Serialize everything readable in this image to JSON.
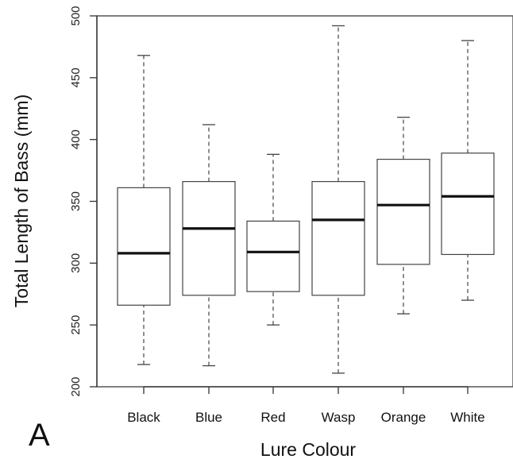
{
  "chart_data": {
    "type": "boxplot",
    "title": "",
    "panel_label": "A",
    "xlabel": "Lure Colour",
    "ylabel": "Total Length of Bass (mm)",
    "ylim": [
      200,
      500
    ],
    "yticks": [
      200,
      250,
      300,
      350,
      400,
      450,
      500
    ],
    "categories": [
      "Black",
      "Blue",
      "Red",
      "Wasp",
      "Orange",
      "White"
    ],
    "boxes": [
      {
        "label": "Black",
        "min": 218,
        "q1": 266,
        "median": 308,
        "q3": 361,
        "max": 468
      },
      {
        "label": "Blue",
        "min": 217,
        "q1": 274,
        "median": 328,
        "q3": 366,
        "max": 412
      },
      {
        "label": "Red",
        "min": 250,
        "q1": 277,
        "median": 309,
        "q3": 334,
        "max": 388
      },
      {
        "label": "Wasp",
        "min": 211,
        "q1": 274,
        "median": 335,
        "q3": 366,
        "max": 492
      },
      {
        "label": "Orange",
        "min": 259,
        "q1": 299,
        "median": 347,
        "q3": 384,
        "max": 418
      },
      {
        "label": "White",
        "min": 270,
        "q1": 307,
        "median": 354,
        "q3": 389,
        "max": 480
      }
    ],
    "grid": false,
    "legend": "none"
  }
}
